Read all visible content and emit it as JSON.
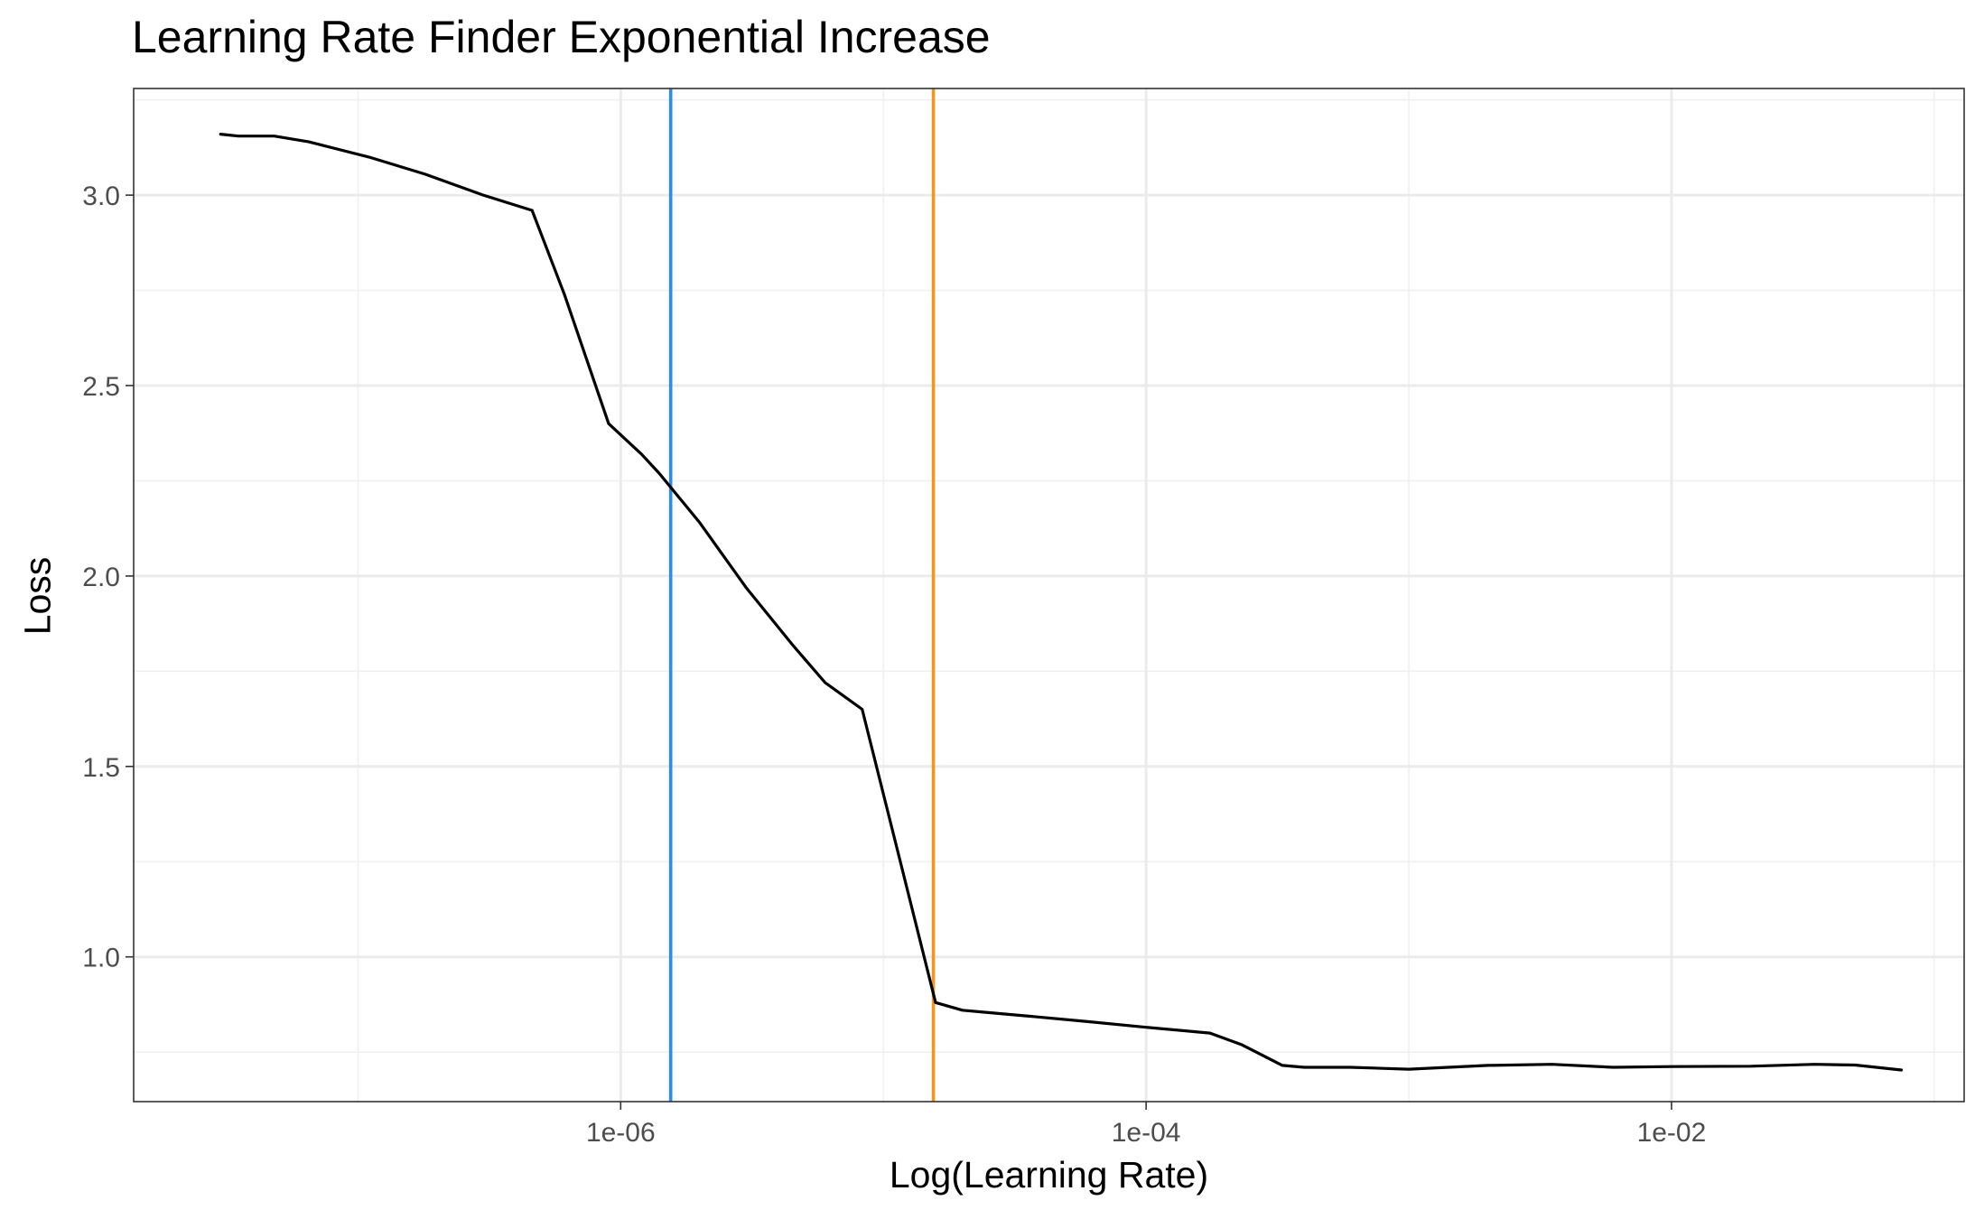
{
  "chart_data": {
    "type": "line",
    "title": "Learning Rate Finder Exponential Increase",
    "xlabel": "Log(Learning Rate)",
    "ylabel": "Loss",
    "x_scale": "log10",
    "xlim": [
      1.4e-08,
      0.13
    ],
    "ylim": [
      0.62,
      3.28
    ],
    "x_ticks": [
      {
        "value": 1e-06,
        "label": "1e-06"
      },
      {
        "value": 0.0001,
        "label": "1e-04"
      },
      {
        "value": 0.01,
        "label": "1e-02"
      }
    ],
    "y_ticks": [
      {
        "value": 1.0,
        "label": "1.0"
      },
      {
        "value": 1.5,
        "label": "1.5"
      },
      {
        "value": 2.0,
        "label": "2.0"
      },
      {
        "value": 2.5,
        "label": "2.5"
      },
      {
        "value": 3.0,
        "label": "3.0"
      }
    ],
    "grid": true,
    "legend": "none",
    "series": [
      {
        "color": "#000000",
        "x": [
          3e-08,
          3.5e-08,
          4.8e-08,
          6.5e-08,
          1.1e-07,
          1.8e-07,
          3e-07,
          4.6e-07,
          6.1e-07,
          9e-07,
          1.2e-06,
          1.4e-06,
          2e-06,
          3e-06,
          4.5e-06,
          6e-06,
          8.3e-06,
          1.15e-05,
          1.58e-05,
          2e-05,
          2.4e-05,
          3.5e-05,
          6e-05,
          0.0001,
          0.000175,
          0.00023,
          0.00033,
          0.0004,
          0.0006,
          0.001,
          0.002,
          0.0035,
          0.006,
          0.01,
          0.02,
          0.035,
          0.05,
          0.075
        ],
        "y": [
          3.16,
          3.155,
          3.155,
          3.14,
          3.1,
          3.055,
          3.0,
          2.96,
          2.74,
          2.4,
          2.32,
          2.27,
          2.14,
          1.97,
          1.82,
          1.72,
          1.65,
          1.26,
          0.88,
          0.86,
          0.855,
          0.845,
          0.83,
          0.815,
          0.8,
          0.77,
          0.715,
          0.71,
          0.71,
          0.705,
          0.715,
          0.718,
          0.71,
          0.712,
          0.713,
          0.718,
          0.716,
          0.703
        ]
      }
    ],
    "vertical_lines": [
      {
        "x": 1.55e-06,
        "color": "#2B8CEB"
      },
      {
        "x": 1.55e-05,
        "color": "#F2961E"
      }
    ]
  }
}
